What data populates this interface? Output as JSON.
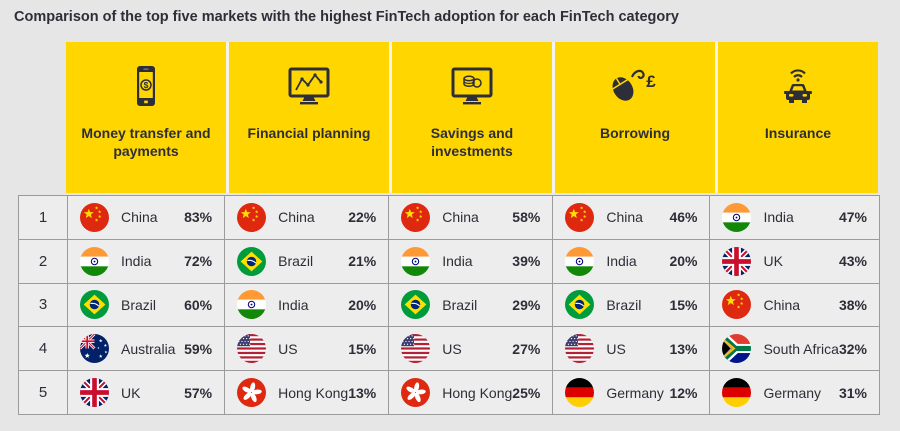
{
  "title": "Comparison of the top five markets with the highest FinTech adoption for each FinTech category",
  "colors": {
    "accent_yellow": "#FFD600",
    "page_background": "#e6e6e6",
    "row_background": "#ededed",
    "grid_border": "#9b9b9b",
    "text": "#2e2e38"
  },
  "categories": [
    {
      "label": "Money transfer and payments",
      "icon": "smartphone-dollar-icon"
    },
    {
      "label": "Financial planning",
      "icon": "monitor-chart-icon"
    },
    {
      "label": "Savings and investments",
      "icon": "monitor-coins-icon"
    },
    {
      "label": "Borrowing",
      "icon": "mouse-pound-icon"
    },
    {
      "label": "Insurance",
      "icon": "connected-car-icon"
    }
  ],
  "table": {
    "rows": [
      {
        "rank": "1",
        "cells": [
          {
            "flag": "china",
            "country": "China",
            "pct": "83%"
          },
          {
            "flag": "china",
            "country": "China",
            "pct": "22%"
          },
          {
            "flag": "china",
            "country": "China",
            "pct": "58%"
          },
          {
            "flag": "china",
            "country": "China",
            "pct": "46%"
          },
          {
            "flag": "india",
            "country": "India",
            "pct": "47%"
          }
        ]
      },
      {
        "rank": "2",
        "cells": [
          {
            "flag": "india",
            "country": "India",
            "pct": "72%"
          },
          {
            "flag": "brazil",
            "country": "Brazil",
            "pct": "21%"
          },
          {
            "flag": "india",
            "country": "India",
            "pct": "39%"
          },
          {
            "flag": "india",
            "country": "India",
            "pct": "20%"
          },
          {
            "flag": "uk",
            "country": "UK",
            "pct": "43%"
          }
        ]
      },
      {
        "rank": "3",
        "cells": [
          {
            "flag": "brazil",
            "country": "Brazil",
            "pct": "60%"
          },
          {
            "flag": "india",
            "country": "India",
            "pct": "20%"
          },
          {
            "flag": "brazil",
            "country": "Brazil",
            "pct": "29%"
          },
          {
            "flag": "brazil",
            "country": "Brazil",
            "pct": "15%"
          },
          {
            "flag": "china",
            "country": "China",
            "pct": "38%"
          }
        ]
      },
      {
        "rank": "4",
        "cells": [
          {
            "flag": "australia",
            "country": "Australia",
            "pct": "59%"
          },
          {
            "flag": "us",
            "country": "US",
            "pct": "15%"
          },
          {
            "flag": "us",
            "country": "US",
            "pct": "27%"
          },
          {
            "flag": "us",
            "country": "US",
            "pct": "13%"
          },
          {
            "flag": "southafrica",
            "country": "South Africa",
            "pct": "32%"
          }
        ]
      },
      {
        "rank": "5",
        "cells": [
          {
            "flag": "uk",
            "country": "UK",
            "pct": "57%"
          },
          {
            "flag": "hongkong",
            "country": "Hong Kong",
            "pct": "13%"
          },
          {
            "flag": "hongkong",
            "country": "Hong Kong",
            "pct": "25%"
          },
          {
            "flag": "germany",
            "country": "Germany",
            "pct": "12%"
          },
          {
            "flag": "germany",
            "country": "Germany",
            "pct": "31%"
          }
        ]
      }
    ]
  },
  "chart_data": {
    "type": "table",
    "title": "Comparison of the top five markets with the highest FinTech adoption for each FinTech category",
    "columns": [
      "Money transfer and payments",
      "Financial planning",
      "Savings and investments",
      "Borrowing",
      "Insurance"
    ],
    "rows_by_rank": [
      [
        {
          "country": "China",
          "adoption_pct": 83
        },
        {
          "country": "China",
          "adoption_pct": 22
        },
        {
          "country": "China",
          "adoption_pct": 58
        },
        {
          "country": "China",
          "adoption_pct": 46
        },
        {
          "country": "India",
          "adoption_pct": 47
        }
      ],
      [
        {
          "country": "India",
          "adoption_pct": 72
        },
        {
          "country": "Brazil",
          "adoption_pct": 21
        },
        {
          "country": "India",
          "adoption_pct": 39
        },
        {
          "country": "India",
          "adoption_pct": 20
        },
        {
          "country": "UK",
          "adoption_pct": 43
        }
      ],
      [
        {
          "country": "Brazil",
          "adoption_pct": 60
        },
        {
          "country": "India",
          "adoption_pct": 20
        },
        {
          "country": "Brazil",
          "adoption_pct": 29
        },
        {
          "country": "Brazil",
          "adoption_pct": 15
        },
        {
          "country": "China",
          "adoption_pct": 38
        }
      ],
      [
        {
          "country": "Australia",
          "adoption_pct": 59
        },
        {
          "country": "US",
          "adoption_pct": 15
        },
        {
          "country": "US",
          "adoption_pct": 27
        },
        {
          "country": "US",
          "adoption_pct": 13
        },
        {
          "country": "South Africa",
          "adoption_pct": 32
        }
      ],
      [
        {
          "country": "UK",
          "adoption_pct": 57
        },
        {
          "country": "Hong Kong",
          "adoption_pct": 13
        },
        {
          "country": "Hong Kong",
          "adoption_pct": 25
        },
        {
          "country": "Germany",
          "adoption_pct": 12
        },
        {
          "country": "Germany",
          "adoption_pct": 31
        }
      ]
    ]
  }
}
